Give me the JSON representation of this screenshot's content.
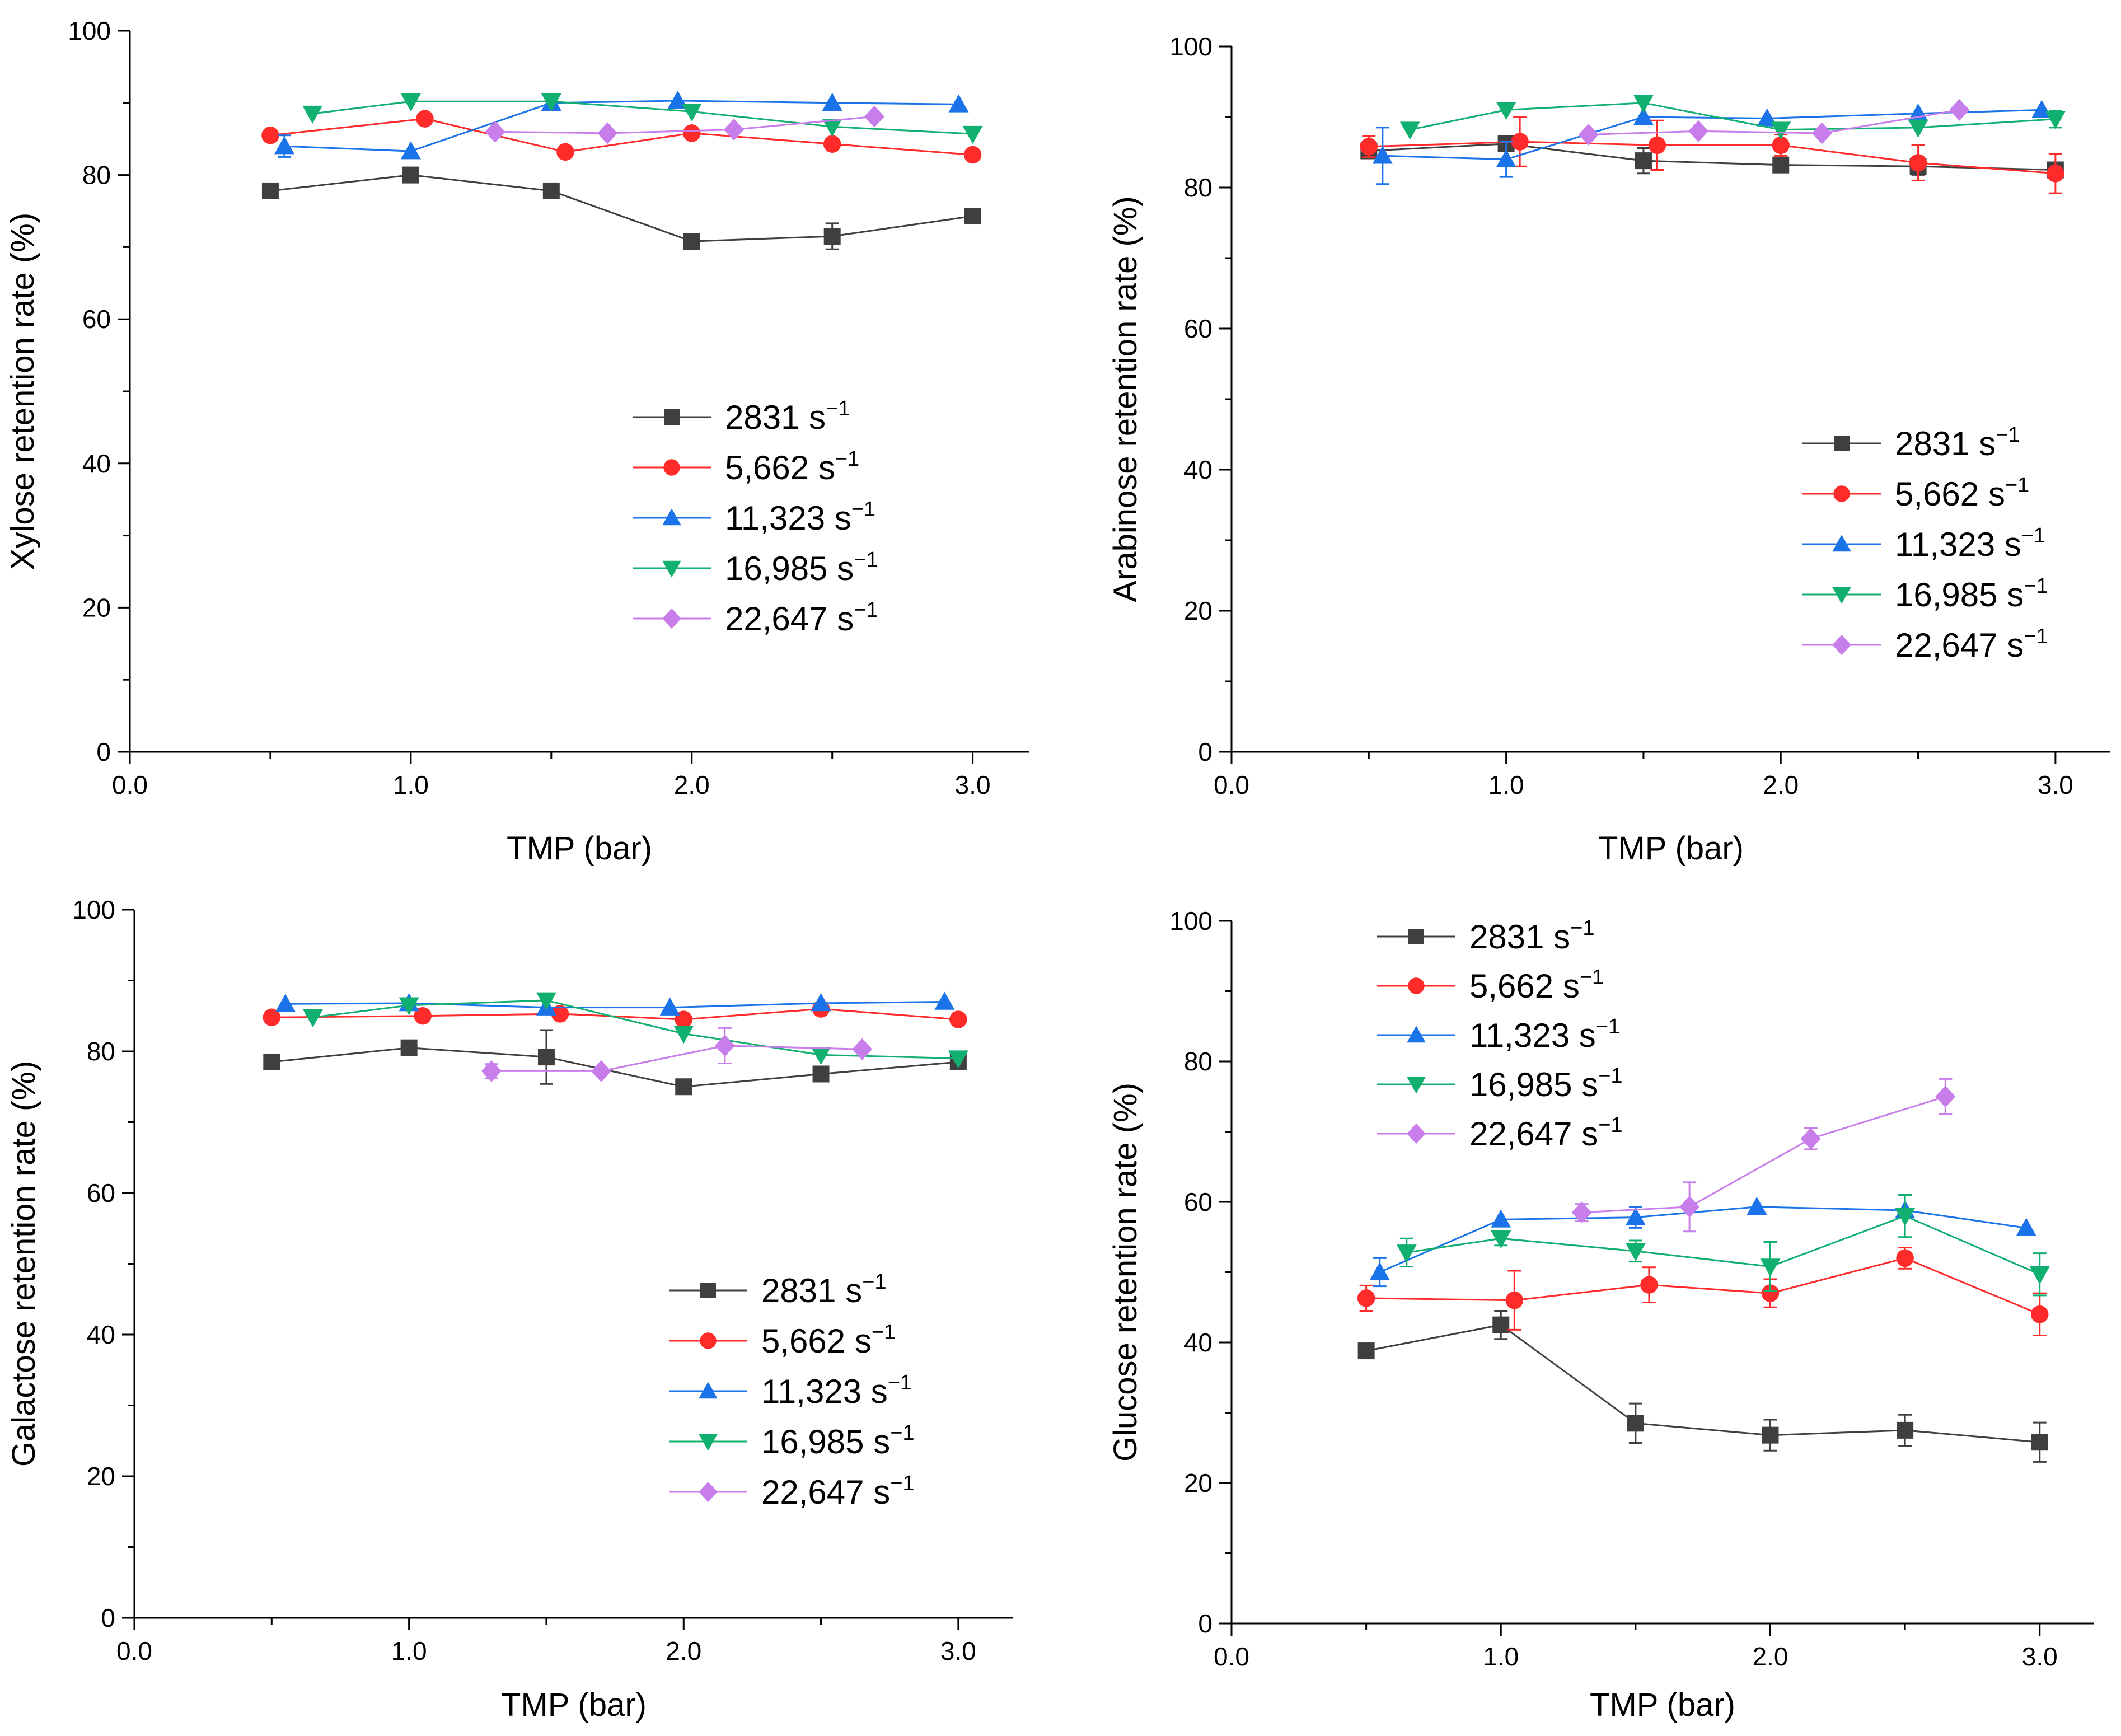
{
  "figure": {
    "legend_unit": "s",
    "legend_unit_superscript": "−1",
    "series_styles": [
      {
        "name": "2831",
        "color": "#3f3f3f",
        "marker": "square"
      },
      {
        "name": "5,662",
        "color": "#ff2b2b",
        "marker": "circle"
      },
      {
        "name": "11,323",
        "color": "#1a73e8",
        "marker": "triangle-up"
      },
      {
        "name": "16,985",
        "color": "#12b070",
        "marker": "triangle-down"
      },
      {
        "name": "22,647",
        "color": "#c77dea",
        "marker": "diamond"
      }
    ]
  },
  "chart_data": [
    {
      "type": "line",
      "title": "",
      "xlabel": "TMP (bar)",
      "ylabel": "Xylose retention rate (%)",
      "xlim": [
        0,
        3.2
      ],
      "ylim": [
        0,
        100
      ],
      "xticks": [
        "0.0",
        "1.0",
        "2.0",
        "3.0"
      ],
      "yticks": [
        "0",
        "20",
        "40",
        "60",
        "80",
        "100"
      ],
      "legend_position": "middle-right",
      "series": [
        {
          "name": "2831",
          "x": [
            0.5,
            1.0,
            1.5,
            2.0,
            2.5,
            3.0
          ],
          "y": [
            77.8,
            80.0,
            77.8,
            70.8,
            71.5,
            74.3
          ],
          "err": [
            0.5,
            0.5,
            0.5,
            0.5,
            1.8,
            0.5
          ]
        },
        {
          "name": "5,662",
          "x": [
            0.5,
            1.05,
            1.55,
            2.0,
            2.5,
            3.0
          ],
          "y": [
            85.5,
            87.8,
            83.2,
            85.8,
            84.3,
            82.8
          ],
          "err": [
            0.5,
            0.5,
            0.8,
            0.5,
            0.5,
            0.5
          ]
        },
        {
          "name": "11,323",
          "x": [
            0.55,
            1.0,
            1.5,
            1.95,
            2.5,
            2.95
          ],
          "y": [
            84.0,
            83.3,
            90.0,
            90.3,
            90.0,
            89.8
          ],
          "err": [
            1.5,
            0.5,
            0.5,
            0.5,
            0.5,
            0.5
          ]
        },
        {
          "name": "16,985",
          "x": [
            0.65,
            1.0,
            1.5,
            2.0,
            2.5,
            3.0
          ],
          "y": [
            88.5,
            90.2,
            90.2,
            88.8,
            86.7,
            85.7
          ],
          "err": [
            0.5,
            0.5,
            0.5,
            0.5,
            0.5,
            0.5
          ]
        },
        {
          "name": "22,647",
          "x": [
            1.3,
            1.7,
            2.15,
            2.65
          ],
          "y": [
            86.0,
            85.8,
            86.3,
            88.1
          ],
          "err": [
            0.5,
            0.5,
            0.5,
            0.5
          ]
        }
      ]
    },
    {
      "type": "line",
      "title": "",
      "xlabel": "TMP (bar)",
      "ylabel": "Arabinose retention rate (%)",
      "xlim": [
        0,
        3.2
      ],
      "ylim": [
        0,
        100
      ],
      "xticks": [
        "0.0",
        "1.0",
        "2.0",
        "3.0"
      ],
      "yticks": [
        "0",
        "20",
        "40",
        "60",
        "80",
        "100"
      ],
      "legend_position": "middle-right",
      "series": [
        {
          "name": "2831",
          "x": [
            0.5,
            1.0,
            1.5,
            2.0,
            2.5,
            3.0
          ],
          "y": [
            85.2,
            86.2,
            83.8,
            83.2,
            83.0,
            82.5
          ],
          "err": [
            0.8,
            0.8,
            1.8,
            0.5,
            1.2,
            0.5
          ]
        },
        {
          "name": "5,662",
          "x": [
            0.5,
            1.05,
            1.55,
            2.0,
            2.5,
            3.0
          ],
          "y": [
            85.8,
            86.5,
            86.0,
            86.0,
            83.5,
            82.0
          ],
          "err": [
            1.5,
            3.5,
            3.5,
            1.5,
            2.5,
            2.8
          ]
        },
        {
          "name": "11,323",
          "x": [
            0.55,
            1.0,
            1.5,
            1.95,
            2.5,
            2.95
          ],
          "y": [
            84.5,
            84.0,
            90.0,
            89.8,
            90.5,
            91.0
          ],
          "err": [
            4.0,
            2.5,
            0.5,
            0.5,
            0.5,
            0.5
          ]
        },
        {
          "name": "16,985",
          "x": [
            0.65,
            1.0,
            1.5,
            2.0,
            2.5,
            3.0
          ],
          "y": [
            88.2,
            91.0,
            92.0,
            88.2,
            88.5,
            89.7
          ],
          "err": [
            0.5,
            0.5,
            0.5,
            0.5,
            0.5,
            1.2
          ]
        },
        {
          "name": "22,647",
          "x": [
            1.3,
            1.7,
            2.15,
            2.65
          ],
          "y": [
            87.5,
            88.0,
            87.7,
            91.0
          ],
          "err": [
            0.5,
            0.5,
            0.5,
            0.5
          ]
        }
      ]
    },
    {
      "type": "line",
      "title": "",
      "xlabel": "TMP (bar)",
      "ylabel": "Galactose retention rate (%)",
      "xlim": [
        0,
        3.2
      ],
      "ylim": [
        0,
        100
      ],
      "xticks": [
        "0.0",
        "1.0",
        "2.0",
        "3.0"
      ],
      "yticks": [
        "0",
        "20",
        "40",
        "60",
        "80",
        "100"
      ],
      "legend_position": "middle-right",
      "series": [
        {
          "name": "2831",
          "x": [
            0.5,
            1.0,
            1.5,
            2.0,
            2.5,
            3.0
          ],
          "y": [
            78.5,
            80.5,
            79.2,
            75.0,
            76.8,
            78.5
          ],
          "err": [
            0.5,
            0.5,
            3.8,
            0.5,
            0.5,
            0.5
          ]
        },
        {
          "name": "5,662",
          "x": [
            0.5,
            1.05,
            1.55,
            2.0,
            2.5,
            3.0
          ],
          "y": [
            84.8,
            85.0,
            85.3,
            84.5,
            86.0,
            84.5
          ],
          "err": [
            0.5,
            0.5,
            0.5,
            0.5,
            0.5,
            0.5
          ]
        },
        {
          "name": "11,323",
          "x": [
            0.55,
            1.0,
            1.5,
            1.95,
            2.5,
            2.95
          ],
          "y": [
            86.7,
            86.8,
            86.2,
            86.2,
            86.8,
            87.0
          ],
          "err": [
            0.5,
            0.5,
            0.5,
            0.5,
            0.5,
            0.5
          ]
        },
        {
          "name": "16,985",
          "x": [
            0.65,
            1.0,
            1.5,
            2.0,
            2.5,
            3.0
          ],
          "y": [
            84.8,
            86.5,
            87.2,
            82.5,
            79.5,
            79.0
          ],
          "err": [
            0.5,
            0.5,
            0.5,
            0.5,
            0.5,
            0.5
          ]
        },
        {
          "name": "22,647",
          "x": [
            1.3,
            1.7,
            2.15,
            2.65
          ],
          "y": [
            77.2,
            77.2,
            80.8,
            80.3
          ],
          "err": [
            1.0,
            0.5,
            2.5,
            0.5
          ]
        }
      ]
    },
    {
      "type": "line",
      "title": "",
      "xlabel": "TMP (bar)",
      "ylabel": "Glucose retention rate (%)",
      "xlim": [
        0,
        3.2
      ],
      "ylim": [
        0,
        100
      ],
      "xticks": [
        "0.0",
        "1.0",
        "2.0",
        "3.0"
      ],
      "yticks": [
        "0",
        "20",
        "40",
        "60",
        "80",
        "100"
      ],
      "legend_position": "top-left",
      "series": [
        {
          "name": "2831",
          "x": [
            0.5,
            1.0,
            1.5,
            2.0,
            2.5,
            3.0
          ],
          "y": [
            38.8,
            42.5,
            28.5,
            26.8,
            27.5,
            25.8
          ],
          "err": [
            0.5,
            2.0,
            2.8,
            2.2,
            2.2,
            2.8
          ]
        },
        {
          "name": "5,662",
          "x": [
            0.5,
            1.05,
            1.55,
            2.0,
            2.5,
            3.0
          ],
          "y": [
            46.3,
            46.0,
            48.2,
            47.0,
            52.0,
            44.0
          ],
          "err": [
            1.8,
            4.2,
            2.5,
            2.0,
            1.5,
            3.0
          ]
        },
        {
          "name": "11,323",
          "x": [
            0.55,
            1.0,
            1.5,
            1.95,
            2.5,
            2.95
          ],
          "y": [
            50.0,
            57.5,
            57.8,
            59.3,
            58.8,
            56.3
          ],
          "err": [
            2.0,
            0.5,
            1.5,
            0.5,
            0.5,
            0.5
          ]
        },
        {
          "name": "16,985",
          "x": [
            0.65,
            1.0,
            1.5,
            2.0,
            2.5,
            3.0
          ],
          "y": [
            52.8,
            54.8,
            53.0,
            50.8,
            58.0,
            49.7
          ],
          "err": [
            2.0,
            1.0,
            1.5,
            3.5,
            3.0,
            3.0
          ]
        },
        {
          "name": "22,647",
          "x": [
            1.3,
            1.7,
            2.15,
            2.65
          ],
          "y": [
            58.5,
            59.3,
            69.0,
            75.0
          ],
          "err": [
            1.2,
            3.5,
            1.5,
            2.5
          ]
        }
      ]
    }
  ]
}
